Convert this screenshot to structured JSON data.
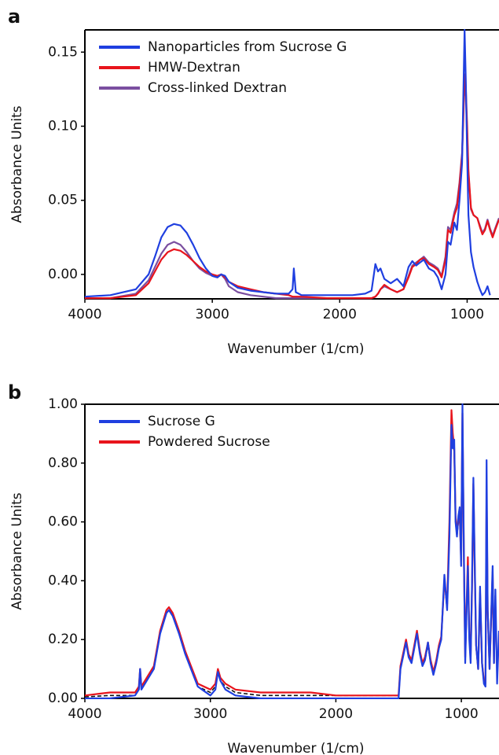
{
  "chart_data": [
    {
      "type": "line",
      "panel_label": "a",
      "xlabel": "Wavenumber (1/cm)",
      "ylabel": "Absorbance Units",
      "xlim": [
        4000,
        750
      ],
      "ylim": [
        -0.0165,
        0.165
      ],
      "xticks": [
        4000,
        3000,
        2000,
        1000
      ],
      "yticks": [
        {
          "value": 0,
          "label": "0.00"
        },
        {
          "value": 0.05,
          "label": "0.05"
        },
        {
          "value": 0.1,
          "label": "0.10"
        },
        {
          "value": 0.15,
          "label": "0.15"
        }
      ],
      "grid": false,
      "legend": "upper left",
      "x": [
        4000,
        3800,
        3600,
        3500,
        3450,
        3400,
        3350,
        3300,
        3250,
        3200,
        3150,
        3100,
        3050,
        3000,
        2960,
        2930,
        2900,
        2870,
        2800,
        2700,
        2600,
        2500,
        2400,
        2370,
        2360,
        2345,
        2300,
        2100,
        1900,
        1800,
        1750,
        1720,
        1700,
        1680,
        1650,
        1600,
        1550,
        1500,
        1460,
        1430,
        1400,
        1370,
        1340,
        1300,
        1260,
        1230,
        1200,
        1170,
        1150,
        1130,
        1100,
        1080,
        1060,
        1040,
        1030,
        1020,
        1010,
        1000,
        990,
        970,
        950,
        920,
        900,
        880,
        860,
        840,
        820,
        800,
        780,
        750
      ],
      "series": [
        {
          "name": "Nanoparticles from Sucrose G",
          "color": "#1f3fe0",
          "values": [
            -0.015,
            -0.014,
            -0.01,
            0.0,
            0.012,
            0.025,
            0.032,
            0.034,
            0.033,
            0.028,
            0.02,
            0.011,
            0.004,
            -0.001,
            -0.002,
            0.0,
            -0.001,
            -0.005,
            -0.009,
            -0.011,
            -0.012,
            -0.013,
            -0.013,
            -0.01,
            0.004,
            -0.012,
            -0.014,
            -0.014,
            -0.014,
            -0.013,
            -0.011,
            0.007,
            0.002,
            0.004,
            -0.003,
            -0.006,
            -0.003,
            -0.008,
            0.005,
            0.009,
            0.006,
            0.008,
            0.01,
            0.004,
            0.002,
            -0.002,
            -0.01,
            0.0,
            0.022,
            0.02,
            0.035,
            0.03,
            0.05,
            0.075,
            0.12,
            0.165,
            0.13,
            0.08,
            0.04,
            0.015,
            0.005,
            -0.005,
            -0.01,
            -0.014,
            -0.012,
            -0.008,
            -0.014,
            null,
            null,
            null
          ]
        },
        {
          "name": "HMW-Dextran",
          "color": "#e8141c",
          "values": [
            -0.016,
            -0.016,
            -0.014,
            -0.006,
            0.002,
            0.01,
            0.015,
            0.017,
            0.016,
            0.013,
            0.009,
            0.005,
            0.002,
            0.0,
            -0.001,
            0.0,
            -0.002,
            -0.005,
            -0.008,
            -0.01,
            -0.012,
            -0.013,
            -0.014,
            -0.015,
            -0.015,
            -0.015,
            -0.015,
            -0.016,
            -0.016,
            -0.016,
            -0.016,
            -0.015,
            -0.013,
            -0.01,
            -0.007,
            -0.01,
            -0.012,
            -0.01,
            -0.002,
            0.005,
            0.007,
            0.01,
            0.011,
            0.007,
            0.005,
            0.003,
            -0.002,
            0.01,
            0.03,
            0.028,
            0.04,
            0.045,
            0.06,
            0.08,
            0.105,
            0.135,
            0.125,
            0.1,
            0.07,
            0.045,
            0.04,
            0.038,
            0.032,
            0.027,
            0.03,
            0.036,
            0.03,
            0.025,
            0.03,
            0.037
          ]
        },
        {
          "name": "Cross-linked Dextran",
          "color": "#7b4fa0",
          "values": [
            -0.016,
            -0.016,
            -0.013,
            -0.004,
            0.005,
            0.014,
            0.02,
            0.022,
            0.02,
            0.015,
            0.009,
            0.004,
            0.001,
            -0.001,
            -0.002,
            0.0,
            -0.003,
            -0.008,
            -0.012,
            -0.014,
            -0.015,
            -0.016,
            -0.016,
            -0.016,
            -0.016,
            -0.016,
            -0.016,
            -0.016,
            -0.016,
            -0.016,
            -0.016,
            -0.015,
            -0.013,
            -0.01,
            -0.008,
            -0.01,
            -0.012,
            -0.01,
            -0.001,
            0.006,
            0.008,
            0.01,
            0.012,
            0.008,
            0.006,
            0.004,
            -0.001,
            0.012,
            0.032,
            0.03,
            0.042,
            0.048,
            0.062,
            0.082,
            0.11,
            0.13,
            0.12,
            0.095,
            0.068,
            0.044,
            0.04,
            0.038,
            0.033,
            0.028,
            0.031,
            0.037,
            0.031,
            0.026,
            0.031,
            0.038
          ]
        }
      ]
    },
    {
      "type": "line",
      "panel_label": "b",
      "xlabel": "Wavenumber (1/cm)",
      "ylabel": "Absorbance Units",
      "xlim": [
        4000,
        700
      ],
      "ylim": [
        0,
        1
      ],
      "xticks": [
        4000,
        3000,
        2000,
        1000
      ],
      "yticks": [
        {
          "value": 0,
          "label": "0.00"
        },
        {
          "value": 0.2,
          "label": "0.20"
        },
        {
          "value": 0.4,
          "label": "0.40"
        },
        {
          "value": 0.6,
          "label": "0.60"
        },
        {
          "value": 0.8,
          "label": "0.80"
        },
        {
          "value": 1,
          "label": "1.00"
        }
      ],
      "grid": false,
      "legend": "upper left",
      "x": [
        4000,
        3800,
        3600,
        3570,
        3560,
        3550,
        3450,
        3400,
        3350,
        3330,
        3300,
        3250,
        3200,
        3100,
        3000,
        2960,
        2940,
        2920,
        2880,
        2800,
        2600,
        2400,
        2200,
        2000,
        1800,
        1600,
        1500,
        1485,
        1460,
        1441,
        1420,
        1397,
        1375,
        1354,
        1330,
        1310,
        1290,
        1266,
        1245,
        1223,
        1200,
        1179,
        1160,
        1135,
        1113,
        1095,
        1079,
        1068,
        1057,
        1046,
        1035,
        1024,
        1013,
        1002,
        991,
        980,
        969,
        958,
        948,
        937,
        926,
        915,
        904,
        893,
        882,
        866,
        851,
        835,
        820,
        808,
        799,
        790,
        775,
        751,
        740,
        729,
        715,
        700
      ],
      "series": [
        {
          "name": "Sucrose G",
          "color": "#1f3fe0",
          "values": [
            0.0,
            0.0,
            0.01,
            0.03,
            0.1,
            0.03,
            0.1,
            0.22,
            0.29,
            0.3,
            0.28,
            0.22,
            0.15,
            0.04,
            0.01,
            0.03,
            0.09,
            0.06,
            0.03,
            0.01,
            0.0,
            0.0,
            0.0,
            0.0,
            0.0,
            0.0,
            0.0,
            0.1,
            0.15,
            0.19,
            0.14,
            0.12,
            0.17,
            0.22,
            0.15,
            0.11,
            0.13,
            0.19,
            0.12,
            0.08,
            0.12,
            0.17,
            0.2,
            0.42,
            0.3,
            0.55,
            0.93,
            0.85,
            0.88,
            0.6,
            0.55,
            0.62,
            0.65,
            0.45,
            1.0,
            0.5,
            0.12,
            0.3,
            0.45,
            0.2,
            0.12,
            0.4,
            0.75,
            0.45,
            0.18,
            0.1,
            0.38,
            0.12,
            0.05,
            0.04,
            0.81,
            0.3,
            0.1,
            0.45,
            0.12,
            0.37,
            0.05,
            0.23
          ]
        },
        {
          "name": "Powdered Sucrose",
          "color": "#e8141c",
          "values": [
            0.01,
            0.02,
            0.02,
            0.04,
            0.1,
            0.04,
            0.11,
            0.23,
            0.3,
            0.31,
            0.29,
            0.23,
            0.16,
            0.05,
            0.03,
            0.05,
            0.1,
            0.07,
            0.05,
            0.03,
            0.02,
            0.02,
            0.02,
            0.01,
            0.01,
            0.01,
            0.01,
            0.11,
            0.16,
            0.2,
            0.15,
            0.13,
            0.18,
            0.23,
            0.16,
            0.12,
            0.14,
            0.19,
            0.13,
            0.09,
            0.13,
            0.18,
            0.21,
            0.4,
            0.32,
            0.6,
            0.98,
            0.9,
            0.85,
            0.62,
            0.57,
            0.6,
            0.62,
            0.47,
            0.97,
            0.48,
            0.14,
            0.32,
            0.48,
            0.22,
            0.14,
            0.38,
            0.73,
            0.43,
            0.18,
            0.1,
            0.36,
            0.12,
            0.06,
            0.05,
            0.7,
            0.3,
            0.1,
            0.43,
            0.12,
            0.35,
            null,
            null
          ]
        },
        {
          "color": "#111111",
          "style": "dashed",
          "values": [
            0.005,
            0.01,
            0.01,
            0.03,
            0.09,
            0.03,
            0.1,
            0.22,
            0.29,
            0.3,
            0.28,
            0.22,
            0.15,
            0.04,
            0.02,
            0.04,
            0.09,
            0.06,
            0.04,
            0.02,
            0.01,
            0.01,
            0.01,
            0.01,
            0.01,
            0.01,
            0.01,
            0.1,
            0.15,
            0.19,
            0.14,
            0.12,
            0.17,
            0.22,
            0.15,
            0.11,
            0.13,
            0.18,
            0.12,
            0.08,
            0.12,
            0.17,
            0.2,
            0.4,
            0.3,
            0.57,
            0.92,
            0.86,
            0.84,
            0.6,
            0.55,
            0.6,
            0.62,
            0.45,
            0.96,
            0.48,
            0.13,
            0.3,
            0.46,
            0.21,
            0.13,
            0.38,
            0.72,
            0.43,
            0.17,
            0.1,
            0.36,
            0.12,
            0.06,
            0.05,
            0.7,
            0.3,
            0.1,
            0.42,
            0.12,
            0.35,
            null,
            null
          ]
        }
      ]
    }
  ]
}
